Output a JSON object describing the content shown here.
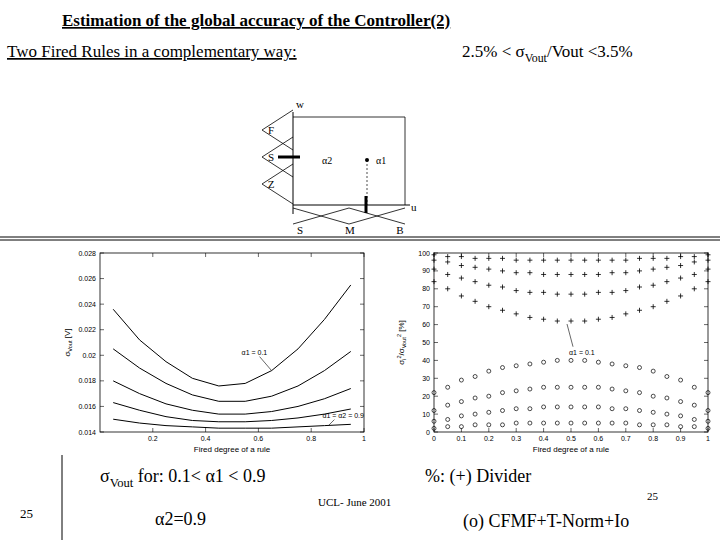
{
  "slide": {
    "title": "Estimation of the global accuracy of the Controller(2)",
    "subtitle": "Two Fired Rules in a complementary way:",
    "range_note": [
      {
        "text": "2.5% < σ"
      },
      {
        "text": "Vout",
        "sub": true
      },
      {
        "text": "/Vout <3.5%"
      }
    ],
    "left_caption": [
      {
        "text": "σ"
      },
      {
        "text": "Vout",
        "sub": true
      },
      {
        "text": " for: 0.1< α1 < 0.9"
      }
    ],
    "left_caption_2": "α2=0.9",
    "right_caption": "%: (+) Divider",
    "right_caption_2": "(o) CFMF+T-Norm+Io",
    "footer": "UCL- June 2001",
    "page_number": "25",
    "page_number_small": "25"
  },
  "diagram": {
    "axis_labels": [
      "w",
      "u"
    ],
    "output_sets": [
      "F",
      "S",
      "Z"
    ],
    "input_sets": [
      "S",
      "M",
      "B"
    ],
    "alphas": [
      "α2",
      "α1"
    ]
  },
  "chart_data": [
    {
      "type": "line",
      "x_label": "Fired degree of a rule",
      "y_label": [
        {
          "text": "σ"
        },
        {
          "text": "Vout",
          "sub": true
        },
        {
          "text": " [V]"
        }
      ],
      "x": [
        0.05,
        0.15,
        0.25,
        0.35,
        0.45,
        0.55,
        0.65,
        0.75,
        0.85,
        0.95
      ],
      "xlim": [
        0,
        1
      ],
      "xticks": [
        0.2,
        0.4,
        0.6,
        0.8,
        1
      ],
      "ylim": [
        0.014,
        0.028
      ],
      "yticks": [
        0.014,
        0.016,
        0.018,
        0.02,
        0.022,
        0.024,
        0.026,
        0.028
      ],
      "grid": false,
      "series": [
        {
          "color": "#000000",
          "values": [
            0.0236,
            0.0212,
            0.0195,
            0.0182,
            0.0176,
            0.0178,
            0.0188,
            0.0205,
            0.0228,
            0.0255
          ]
        },
        {
          "color": "#000000",
          "values": [
            0.0205,
            0.019,
            0.0178,
            0.0169,
            0.0164,
            0.0164,
            0.0168,
            0.0176,
            0.0188,
            0.0203
          ]
        },
        {
          "color": "#000000",
          "values": [
            0.018,
            0.017,
            0.0162,
            0.0157,
            0.0154,
            0.0154,
            0.0156,
            0.016,
            0.0166,
            0.0174
          ]
        },
        {
          "color": "#000000",
          "values": [
            0.0163,
            0.0157,
            0.0152,
            0.0149,
            0.0148,
            0.0148,
            0.0149,
            0.0151,
            0.0154,
            0.0158
          ]
        },
        {
          "color": "#000000",
          "values": [
            0.015,
            0.0147,
            0.0145,
            0.0144,
            0.0143,
            0.0143,
            0.0143,
            0.0144,
            0.0145,
            0.0146
          ]
        }
      ],
      "annotations": [
        "α1 = 0.1",
        "α1 = α2 = 0.9"
      ]
    },
    {
      "type": "scatter",
      "x_label": "Fired degree of a rule",
      "y_label": [
        {
          "text": "σ"
        },
        {
          "text": "i",
          "sub": true
        },
        {
          "text": "2",
          "sup": true
        },
        {
          "text": "/σ"
        },
        {
          "text": "Vout",
          "sub": true
        },
        {
          "text": "2",
          "sup": true
        },
        {
          "text": " [%]"
        }
      ],
      "x": [
        0,
        0.05,
        0.1,
        0.15,
        0.2,
        0.25,
        0.3,
        0.35,
        0.4,
        0.45,
        0.5,
        0.55,
        0.6,
        0.65,
        0.7,
        0.75,
        0.8,
        0.85,
        0.9,
        0.95,
        1
      ],
      "xlim": [
        0,
        1
      ],
      "xticks": [
        0,
        0.1,
        0.2,
        0.3,
        0.4,
        0.5,
        0.6,
        0.7,
        0.8,
        0.9,
        1
      ],
      "ylim": [
        0,
        100
      ],
      "yticks": [
        0,
        10,
        20,
        30,
        40,
        50,
        60,
        70,
        80,
        90,
        100
      ],
      "grid": false,
      "series": [
        {
          "marker": "plus",
          "color": "#000000",
          "values": [
            99,
            98,
            98,
            97,
            97,
            97,
            96,
            96,
            96,
            96,
            96,
            96,
            96,
            96,
            96,
            97,
            97,
            97,
            98,
            98,
            99
          ]
        },
        {
          "marker": "plus",
          "color": "#000000",
          "values": [
            96,
            95,
            93,
            92,
            91,
            90,
            89,
            89,
            88,
            88,
            88,
            88,
            88,
            89,
            89,
            90,
            91,
            92,
            93,
            95,
            96
          ]
        },
        {
          "marker": "plus",
          "color": "#000000",
          "values": [
            91,
            88,
            86,
            84,
            82,
            81,
            79,
            78,
            78,
            77,
            77,
            77,
            78,
            78,
            79,
            81,
            82,
            84,
            86,
            88,
            91
          ]
        },
        {
          "marker": "plus",
          "color": "#000000",
          "values": [
            84,
            80,
            76,
            73,
            70,
            68,
            66,
            64,
            63,
            62,
            62,
            62,
            63,
            64,
            66,
            68,
            70,
            73,
            76,
            80,
            84
          ]
        },
        {
          "marker": "circle",
          "color": "#000000",
          "values": [
            2,
            3,
            3,
            4,
            4,
            4,
            5,
            5,
            5,
            5,
            5,
            5,
            5,
            5,
            5,
            4,
            4,
            4,
            3,
            3,
            2
          ]
        },
        {
          "marker": "circle",
          "color": "#000000",
          "values": [
            6,
            7,
            9,
            10,
            11,
            12,
            13,
            13,
            14,
            14,
            14,
            14,
            14,
            13,
            13,
            12,
            11,
            10,
            9,
            7,
            6
          ]
        },
        {
          "marker": "circle",
          "color": "#000000",
          "values": [
            12,
            15,
            17,
            19,
            20,
            22,
            23,
            24,
            25,
            25,
            25,
            25,
            25,
            24,
            23,
            22,
            20,
            19,
            17,
            15,
            12
          ]
        },
        {
          "marker": "circle",
          "color": "#000000",
          "values": [
            22,
            25,
            29,
            31,
            34,
            36,
            37,
            38,
            39,
            40,
            40,
            40,
            39,
            38,
            37,
            36,
            34,
            31,
            29,
            25,
            22
          ]
        }
      ],
      "annotations": [
        "α1 = 0.1"
      ]
    }
  ]
}
